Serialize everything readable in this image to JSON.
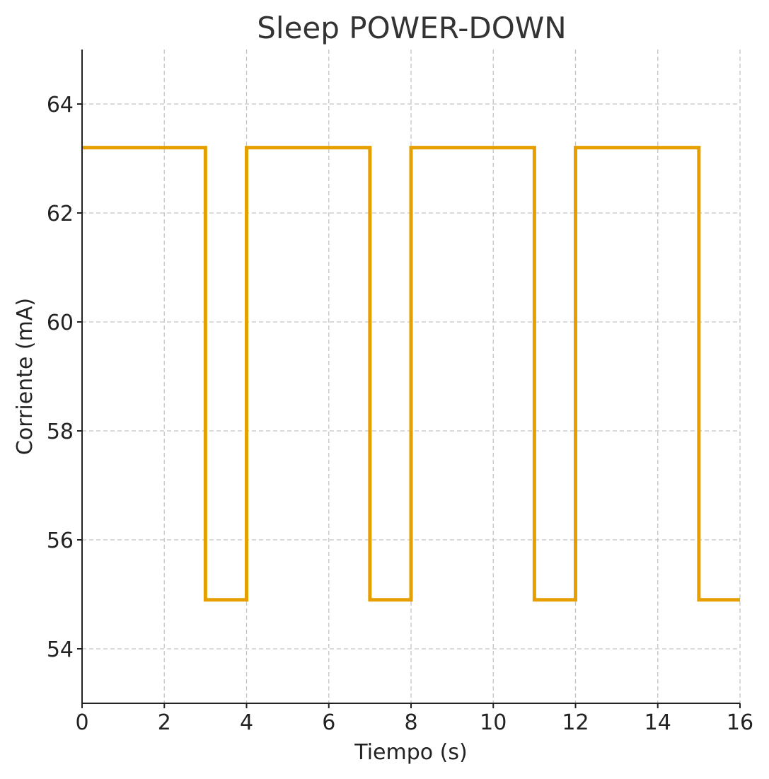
{
  "chart_data": {
    "type": "line",
    "title": "Sleep POWER-DOWN",
    "xlabel": "Tiempo (s)",
    "ylabel": "Corriente (mA)",
    "xlim": [
      0,
      16
    ],
    "ylim": [
      53,
      65
    ],
    "xticks": [
      0,
      2,
      4,
      6,
      8,
      10,
      12,
      14,
      16
    ],
    "yticks": [
      54,
      56,
      58,
      60,
      62,
      64
    ],
    "grid": true,
    "step": "post",
    "series": [
      {
        "color": "#E69F00",
        "x": [
          0,
          3,
          4,
          7,
          8,
          11,
          12,
          15,
          16
        ],
        "y": [
          63.2,
          54.9,
          63.2,
          54.9,
          63.2,
          54.9,
          63.2,
          54.9,
          54.9
        ]
      }
    ]
  }
}
